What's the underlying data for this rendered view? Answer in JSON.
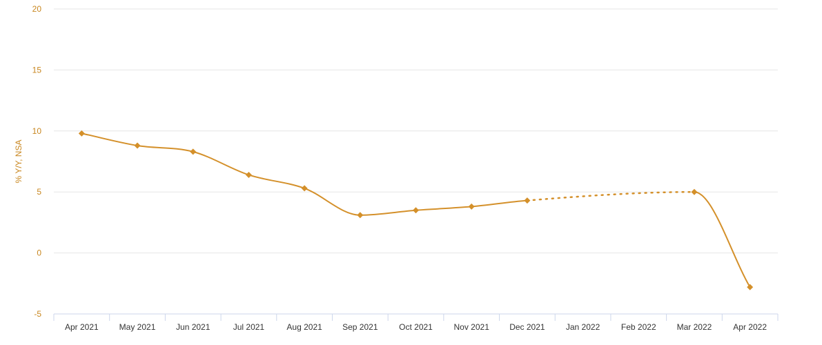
{
  "chart_data": {
    "type": "line",
    "title": "",
    "xlabel": "",
    "ylabel": "% Y/Y, NSA",
    "categories": [
      "Apr 2021",
      "May 2021",
      "Jun 2021",
      "Jul 2021",
      "Aug 2021",
      "Sep 2021",
      "Oct 2021",
      "Nov 2021",
      "Dec 2021",
      "Jan 2022",
      "Feb 2022",
      "Mar 2022",
      "Apr 2022"
    ],
    "series": [
      {
        "values": [
          9.8,
          8.8,
          8.3,
          6.4,
          5.3,
          3.1,
          3.5,
          3.8,
          4.3,
          null,
          null,
          5.0,
          -2.8
        ],
        "color": "#d4902a",
        "gap_style": "dotted"
      }
    ],
    "ylim": [
      -5,
      20
    ],
    "yticks": [
      -5,
      0,
      5,
      10,
      15,
      20
    ],
    "grid": true,
    "legend": "none",
    "axis_label_color": "#c8861e",
    "grid_color": "#e6e6e6"
  }
}
